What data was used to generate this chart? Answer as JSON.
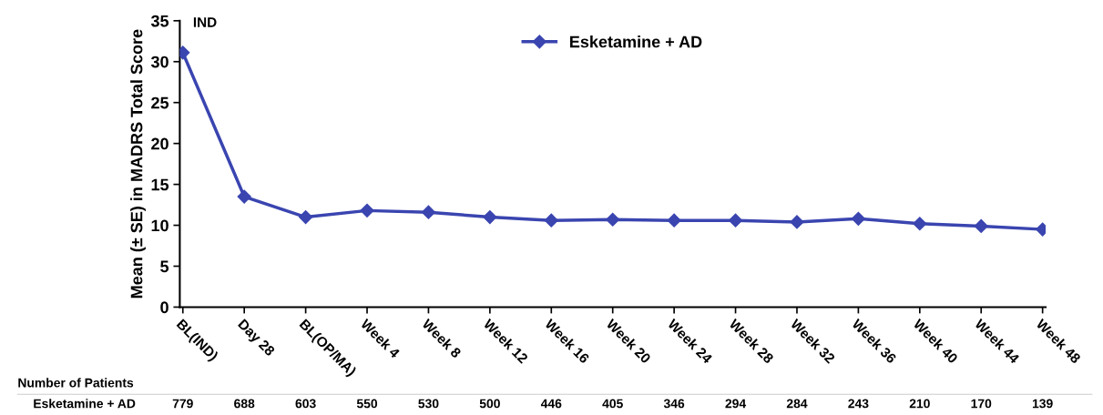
{
  "chart_data": {
    "type": "line",
    "ylabel": "Mean (± SE) in MADRS Total Score",
    "categories": [
      "BL(IND)",
      "Day 28",
      "BL(OP/MA)",
      "Week 4",
      "Week 8",
      "Week 12",
      "Week 16",
      "Week 20",
      "Week 24",
      "Week 28",
      "Week 32",
      "Week 36",
      "Week 40",
      "Week 44",
      "Week 48"
    ],
    "series": [
      {
        "name": "Esketamine + AD",
        "color": "#3a45b0",
        "values": [
          31.1,
          13.5,
          11.0,
          11.8,
          11.6,
          11.0,
          10.6,
          10.7,
          10.6,
          10.6,
          10.4,
          10.8,
          10.2,
          9.9,
          9.5
        ],
        "errors": [
          0.3,
          0.3,
          0.2,
          0.3,
          0.3,
          0.3,
          0.3,
          0.3,
          0.3,
          0.3,
          0.3,
          0.3,
          0.3,
          0.5,
          0.5
        ]
      }
    ],
    "ylim": [
      0,
      35
    ],
    "yticks": [
      0,
      5,
      10,
      15,
      20,
      25,
      30,
      35
    ],
    "annotations": [
      {
        "text": "IND",
        "x": "BL(IND)",
        "y": 31.1
      },
      "Number of Patients",
      "Esketamine + AD",
      "779",
      "688",
      "603",
      "550",
      "530",
      "500",
      "446",
      "405",
      "346",
      "294",
      "284",
      "243",
      "210",
      "170",
      "139"
    ],
    "legend": "top",
    "marker": "diamond",
    "line_style": "solid",
    "grid": false
  }
}
